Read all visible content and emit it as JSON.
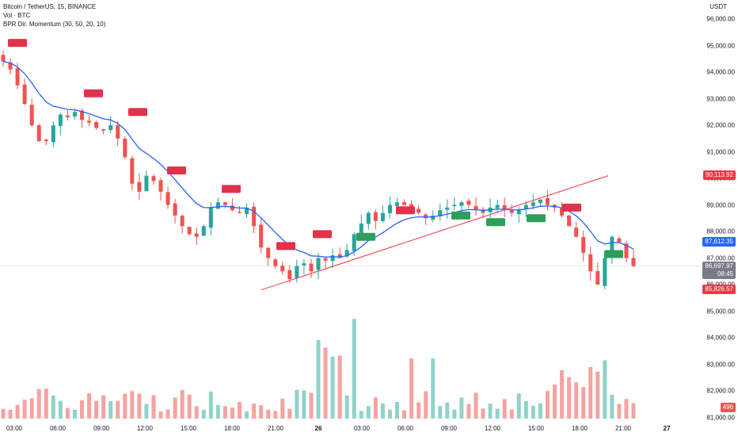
{
  "legend": {
    "symbol_line": "Bitcoin / TetherUS, 15, BINANCE",
    "volume": "Vol · BTC",
    "indicator": "BPR Dir. Momentum (30, 50, 20, 10)"
  },
  "price_axis": {
    "unit": "USDT",
    "ticks": [
      "96,000.00",
      "95,000.00",
      "94,000.00",
      "93,000.00",
      "92,000.00",
      "91,000.00",
      "90,000.00",
      "89,000.00",
      "88,000.00",
      "87,000.00",
      "86,000.00",
      "85,000.00",
      "84,000.00",
      "83,000.00",
      "82,000.00",
      "81,000.00"
    ],
    "tick_values": [
      96000,
      95000,
      94000,
      93000,
      92000,
      91000,
      90000,
      89000,
      88000,
      87000,
      86000,
      85000,
      84000,
      83000,
      82000,
      81000
    ]
  },
  "time_axis": {
    "ticks": [
      "03:00",
      "06:00",
      "09:00",
      "12:00",
      "15:00",
      "18:00",
      "21:00",
      "26",
      "03:00",
      "06:00",
      "09:00",
      "12:00",
      "15:00",
      "18:00",
      "21:00",
      "27"
    ]
  },
  "badges": {
    "high_label": "90,113.92",
    "ma_label": "87,612.35",
    "last_price": "86,697.97",
    "countdown": "08:45",
    "low_label": "85,826.57",
    "volume_label": "496"
  },
  "colors": {
    "up": "#26a69a",
    "down": "#ef5350",
    "up_volume": "#8fd3ca",
    "down_volume": "#f5a3a1",
    "ma_line": "#2962ff",
    "trendline": "#f23645",
    "bear_signal": "#e0324b",
    "bull_signal": "#2e9e5b",
    "last_price_badge": "#787b86"
  },
  "chart_data": {
    "type": "candlestick",
    "price_range": [
      80700,
      96500
    ],
    "close_path": [
      94400,
      94100,
      93500,
      92800,
      92000,
      91400,
      91400,
      92000,
      92400,
      92300,
      92500,
      92200,
      92100,
      91900,
      91800,
      92000,
      91500,
      90800,
      89800,
      89500,
      90100,
      89900,
      89500,
      89000,
      88600,
      88200,
      87900,
      87800,
      88200,
      88900,
      89100,
      89000,
      88800,
      88700,
      88900,
      88200,
      87400,
      87000,
      86700,
      86500,
      86200,
      86700,
      86800,
      86500,
      87000,
      86900,
      87100,
      87000,
      87300,
      87900,
      88300,
      88700,
      88400,
      88700,
      89000,
      89100,
      89000,
      88900,
      88700,
      88500,
      88600,
      88800,
      88900,
      89000,
      89100,
      89000,
      88800,
      88700,
      88900,
      89000,
      88800,
      88700,
      88800,
      89000,
      89100,
      89200,
      89000,
      88900,
      88600,
      88200,
      87800,
      87200,
      86500,
      86000,
      87000,
      87800,
      87600,
      87000,
      86698
    ],
    "moving_average": {
      "from": 94500,
      "to": 87612.35
    },
    "trendlines": [
      {
        "from": 85800,
        "to": 90100
      }
    ],
    "signals": {
      "bear_count": 9,
      "bull_count": 5
    },
    "volume_range": [
      0,
      6000
    ]
  }
}
